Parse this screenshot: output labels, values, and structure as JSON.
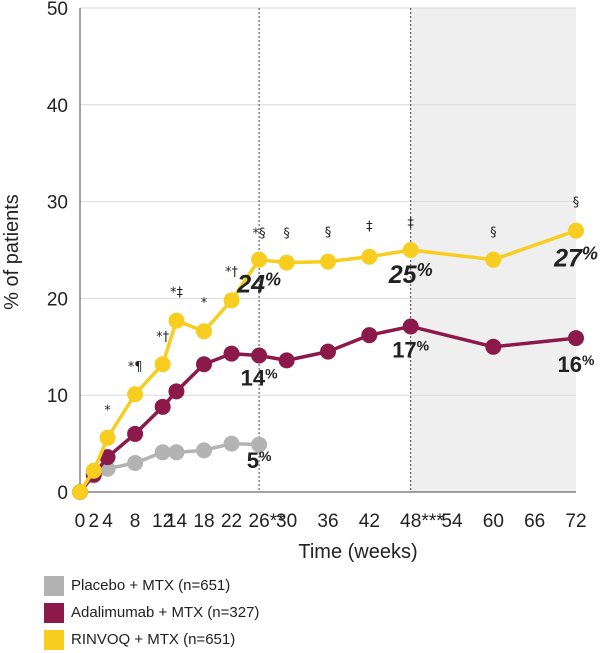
{
  "chart_data": {
    "type": "line",
    "xlabel": "Time (weeks)",
    "ylabel": "% of patients",
    "ylim": [
      0,
      50
    ],
    "xlim": [
      0,
      72
    ],
    "y_ticks": [
      "0",
      "10",
      "20",
      "30",
      "40",
      "50"
    ],
    "x_ticks": [
      {
        "x": 0,
        "label": "0"
      },
      {
        "x": 2,
        "label": "2"
      },
      {
        "x": 4,
        "label": "4"
      },
      {
        "x": 8,
        "label": "8"
      },
      {
        "x": 12,
        "label": "12"
      },
      {
        "x": 14,
        "label": "14"
      },
      {
        "x": 18,
        "label": "18"
      },
      {
        "x": 22,
        "label": "22"
      },
      {
        "x": 26,
        "label": "26**"
      },
      {
        "x": 30,
        "label": "30"
      },
      {
        "x": 36,
        "label": "36"
      },
      {
        "x": 42,
        "label": "42"
      },
      {
        "x": 48,
        "label": "48***"
      },
      {
        "x": 54,
        "label": "54"
      },
      {
        "x": 60,
        "label": "60"
      },
      {
        "x": 66,
        "label": "66"
      },
      {
        "x": 72,
        "label": "72"
      }
    ],
    "grid": "horizontal",
    "reference_lines_x": [
      26,
      48
    ],
    "shaded_region_x": [
      48,
      72
    ],
    "series": [
      {
        "name": "Placebo + MTX (n=651)",
        "color": "#b3b3b3",
        "x": [
          0,
          2,
          4,
          8,
          12,
          14,
          18,
          22,
          26
        ],
        "y": [
          0,
          1.7,
          2.4,
          3.0,
          4.1,
          4.1,
          4.3,
          5.0,
          4.9
        ],
        "end_label": {
          "text": "5",
          "suffix": "%",
          "x": 26,
          "y": 2.5
        }
      },
      {
        "name": "Adalimumab + MTX (n=327)",
        "color": "#8b1a4a",
        "x": [
          0,
          2,
          4,
          8,
          12,
          14,
          18,
          22,
          26,
          30,
          36,
          42,
          48,
          60,
          72
        ],
        "y": [
          0,
          1.8,
          3.6,
          6.0,
          8.8,
          10.4,
          13.2,
          14.3,
          14.1,
          13.6,
          14.5,
          16.2,
          17.1,
          15.0,
          15.9
        ],
        "end_labels": [
          {
            "text": "14",
            "suffix": "%",
            "x": 26,
            "y": 11.0
          },
          {
            "text": "17",
            "suffix": "%",
            "x": 48,
            "y": 13.9
          },
          {
            "text": "16",
            "suffix": "%",
            "x": 72,
            "y": 12.4
          }
        ]
      },
      {
        "name": "RINVOQ + MTX (n=651)",
        "color": "#f7cd1f",
        "x": [
          0,
          2,
          4,
          8,
          12,
          14,
          18,
          22,
          26,
          30,
          36,
          42,
          48,
          60,
          72
        ],
        "y": [
          0,
          2.2,
          5.6,
          10.1,
          13.2,
          17.7,
          16.6,
          19.8,
          24.0,
          23.7,
          23.8,
          24.3,
          25.0,
          24.0,
          27.0
        ],
        "end_labels": [
          {
            "text": "24",
            "suffix": "%",
            "x": 26,
            "y": 20.6
          },
          {
            "text": "25",
            "suffix": "%",
            "x": 48,
            "y": 21.6
          },
          {
            "text": "27",
            "suffix": "%",
            "x": 72,
            "y": 23.3
          }
        ]
      }
    ],
    "annotations": [
      {
        "x": 4,
        "y": 8.0,
        "text": "*"
      },
      {
        "x": 8,
        "y": 12.5,
        "text": "*¶"
      },
      {
        "x": 12,
        "y": 15.6,
        "text": "*†"
      },
      {
        "x": 14,
        "y": 20.2,
        "text": "*‡"
      },
      {
        "x": 18,
        "y": 19.1,
        "text": "*"
      },
      {
        "x": 22,
        "y": 22.3,
        "text": "*†"
      },
      {
        "x": 26,
        "y": 26.3,
        "text": "*§"
      },
      {
        "x": 30,
        "y": 26.3,
        "text": "§"
      },
      {
        "x": 36,
        "y": 26.4,
        "text": "§"
      },
      {
        "x": 42,
        "y": 27.0,
        "text": "‡"
      },
      {
        "x": 48,
        "y": 27.4,
        "text": "‡"
      },
      {
        "x": 60,
        "y": 26.4,
        "text": "§"
      },
      {
        "x": 72,
        "y": 29.5,
        "text": "§"
      }
    ]
  }
}
